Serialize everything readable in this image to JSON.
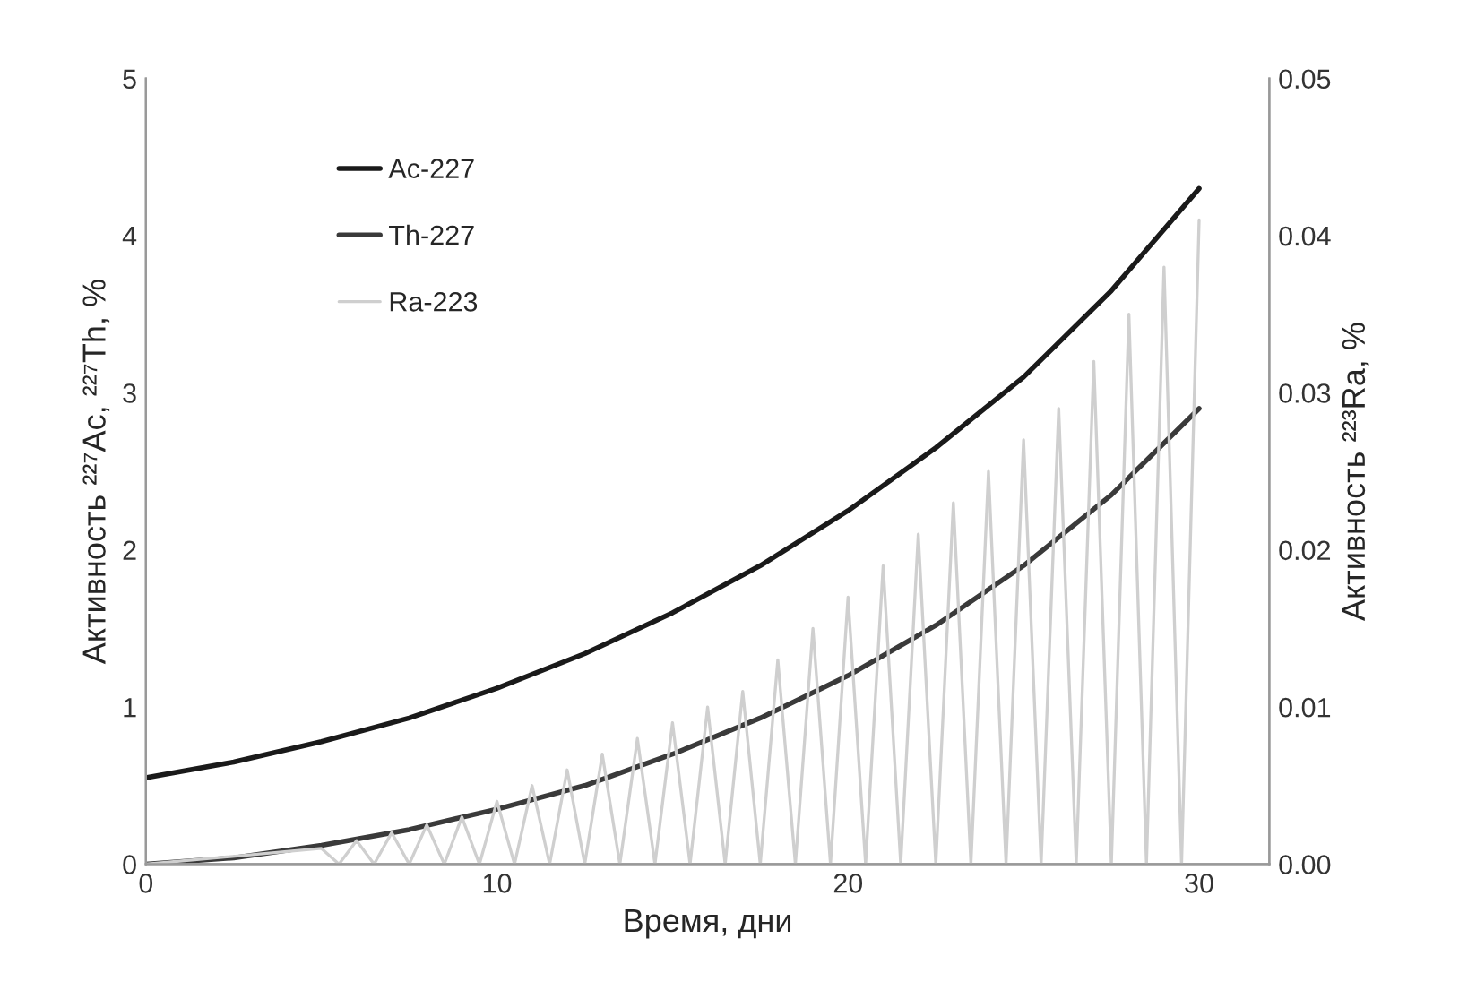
{
  "chart_data": {
    "type": "line",
    "xlabel": "Время, дни",
    "ylabel": "Активность ²²⁷Ac, ²²⁷Th, %",
    "y2label": "Активность ²²³Ra, %",
    "xlim": [
      0,
      32
    ],
    "xticks": [
      0,
      10,
      20,
      30
    ],
    "ylim": [
      0,
      5
    ],
    "yticks": [
      0,
      1,
      2,
      3,
      4,
      5
    ],
    "y2lim": [
      0,
      0.05
    ],
    "y2ticks": [
      {
        "value": 0,
        "label": "0.00"
      },
      {
        "value": 0.01,
        "label": "0.01"
      },
      {
        "value": 0.02,
        "label": "0.02"
      },
      {
        "value": 0.03,
        "label": "0.03"
      },
      {
        "value": 0.04,
        "label": "0.04"
      },
      {
        "value": 0.05,
        "label": "0.05"
      }
    ],
    "grid": false,
    "legend": "top left",
    "marker": "none",
    "line_style": "solid",
    "series": [
      {
        "name": "Ac-227",
        "color": "#1a1a1a",
        "x": [
          0,
          2.5,
          5,
          7.5,
          10,
          12.5,
          15,
          17.5,
          20,
          22.5,
          25,
          27.5,
          30
        ],
        "values": [
          0.55,
          0.65,
          0.78,
          0.93,
          1.12,
          1.34,
          1.6,
          1.9,
          2.25,
          2.65,
          3.1,
          3.65,
          4.3
        ]
      },
      {
        "name": "Th-227",
        "color": "#3a3a3a",
        "x": [
          0,
          2.5,
          5,
          7.5,
          10,
          12.5,
          15,
          17.5,
          20,
          22.5,
          25,
          27.5,
          30
        ],
        "values": [
          0,
          0.04,
          0.12,
          0.22,
          0.35,
          0.5,
          0.7,
          0.93,
          1.2,
          1.52,
          1.9,
          2.35,
          2.9
        ]
      },
      {
        "name": "Ra-223",
        "color": "#cfcfcf",
        "axis": "y2",
        "x": [
          0,
          5,
          5.5,
          6,
          6.5,
          7,
          7.5,
          8,
          8.5,
          9,
          9.5,
          10,
          10.5,
          11,
          11.5,
          12,
          12.5,
          13,
          13.5,
          14,
          14.5,
          15,
          15.5,
          16,
          16.5,
          17,
          17.5,
          18,
          18.5,
          19,
          19.5,
          20,
          20.5,
          21,
          21.5,
          22,
          22.5,
          23,
          23.5,
          24,
          24.5,
          25,
          25.5,
          26,
          26.5,
          27,
          27.5,
          28,
          28.5,
          29,
          29.5,
          30
        ],
        "values": [
          0,
          0.001,
          0,
          0.0015,
          0,
          0.002,
          0,
          0.0025,
          0,
          0.003,
          0,
          0.004,
          0,
          0.005,
          0,
          0.006,
          0,
          0.007,
          0,
          0.008,
          0,
          0.009,
          0,
          0.01,
          0,
          0.011,
          0,
          0.013,
          0,
          0.015,
          0,
          0.017,
          0,
          0.019,
          0,
          0.021,
          0,
          0.023,
          0,
          0.025,
          0,
          0.027,
          0,
          0.029,
          0,
          0.032,
          0,
          0.035,
          0,
          0.038,
          0,
          0.041
        ]
      }
    ]
  }
}
